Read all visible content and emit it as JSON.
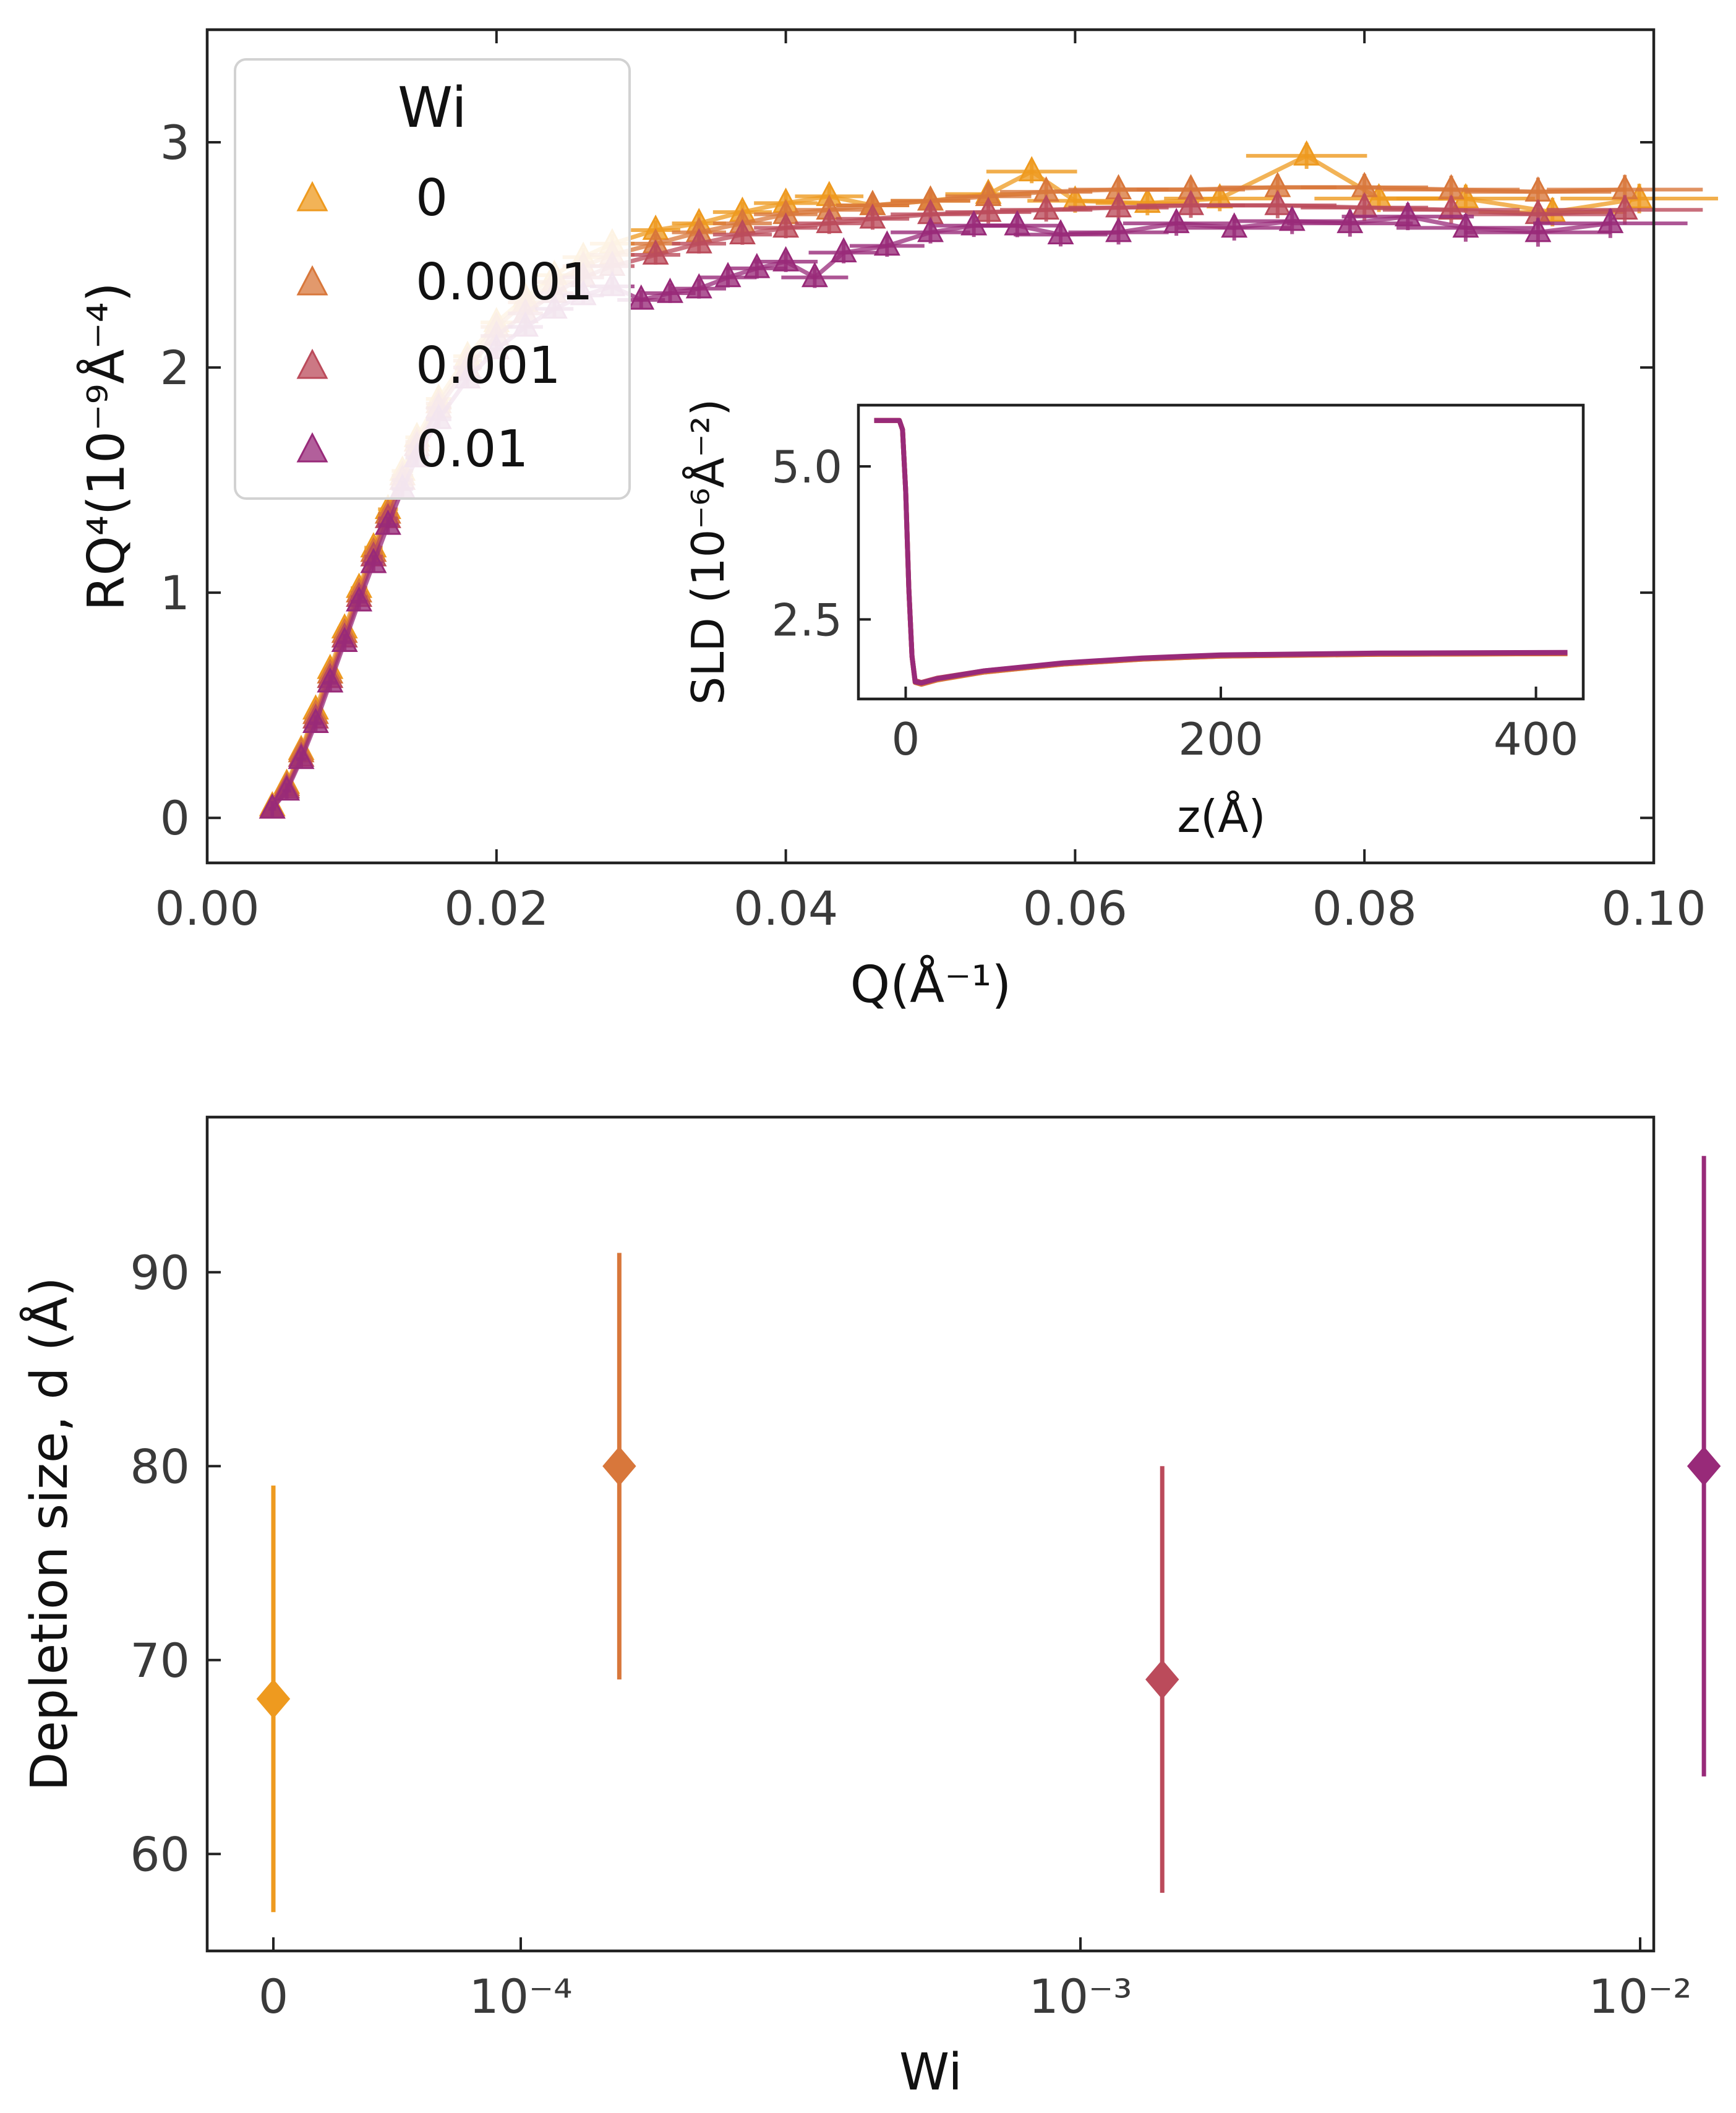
{
  "colors": {
    "wi_0": "#ee9a1f",
    "wi_0.0001": "#d8773b",
    "wi_0.001": "#bb4b5b",
    "wi_0.01": "#982a79",
    "axis": "#222222",
    "tick_text": "#3a3a3a"
  },
  "chart_data": [
    {
      "id": "reflectivity",
      "type": "scatter",
      "title": "",
      "xlabel": "Q(Å⁻¹)",
      "ylabel": "RQ⁴(10⁻⁹Å⁻⁴)",
      "xlim": [
        0.0,
        0.1
      ],
      "ylim": [
        -0.2,
        3.5
      ],
      "xticks": [
        0.0,
        0.02,
        0.04,
        0.06,
        0.08,
        0.1
      ],
      "xtick_labels": [
        "0.00",
        "0.02",
        "0.04",
        "0.06",
        "0.08",
        "0.10"
      ],
      "yticks": [
        0,
        1,
        2,
        3
      ],
      "ytick_labels": [
        "0",
        "1",
        "2",
        "3"
      ],
      "legend": {
        "title": "Wi",
        "position": "top-left",
        "entries": [
          "0",
          "0.0001",
          "0.001",
          "0.01"
        ],
        "marker": "triangle"
      },
      "series": [
        {
          "name": "0",
          "color": "#ee9a1f",
          "points": [
            [
              0.0045,
              0.05
            ],
            [
              0.0055,
              0.15
            ],
            [
              0.0065,
              0.3
            ],
            [
              0.0075,
              0.48
            ],
            [
              0.0085,
              0.66
            ],
            [
              0.0095,
              0.84
            ],
            [
              0.0105,
              1.02
            ],
            [
              0.0115,
              1.2
            ],
            [
              0.0125,
              1.37
            ],
            [
              0.0135,
              1.54
            ],
            [
              0.0145,
              1.69
            ],
            [
              0.016,
              1.86
            ],
            [
              0.018,
              2.05
            ],
            [
              0.02,
              2.2
            ],
            [
              0.022,
              2.31
            ],
            [
              0.024,
              2.41
            ],
            [
              0.026,
              2.49
            ],
            [
              0.028,
              2.55
            ],
            [
              0.031,
              2.61
            ],
            [
              0.034,
              2.64
            ],
            [
              0.037,
              2.69
            ],
            [
              0.04,
              2.73
            ],
            [
              0.043,
              2.76
            ],
            [
              0.046,
              2.72
            ],
            [
              0.05,
              2.74
            ],
            [
              0.054,
              2.77
            ],
            [
              0.057,
              2.87
            ],
            [
              0.06,
              2.74
            ],
            [
              0.065,
              2.73
            ],
            [
              0.07,
              2.75
            ],
            [
              0.076,
              2.94
            ],
            [
              0.081,
              2.75
            ],
            [
              0.087,
              2.75
            ],
            [
              0.093,
              2.69
            ],
            [
              0.099,
              2.75
            ]
          ]
        },
        {
          "name": "0.0001",
          "color": "#d8773b",
          "points": [
            [
              0.0045,
              0.04
            ],
            [
              0.0055,
              0.14
            ],
            [
              0.0065,
              0.29
            ],
            [
              0.0075,
              0.46
            ],
            [
              0.0085,
              0.64
            ],
            [
              0.0095,
              0.82
            ],
            [
              0.0105,
              1.0
            ],
            [
              0.0115,
              1.18
            ],
            [
              0.0125,
              1.35
            ],
            [
              0.0135,
              1.52
            ],
            [
              0.0145,
              1.67
            ],
            [
              0.016,
              1.84
            ],
            [
              0.018,
              2.03
            ],
            [
              0.02,
              2.18
            ],
            [
              0.022,
              2.29
            ],
            [
              0.024,
              2.38
            ],
            [
              0.026,
              2.45
            ],
            [
              0.028,
              2.5
            ],
            [
              0.031,
              2.55
            ],
            [
              0.034,
              2.6
            ],
            [
              0.037,
              2.64
            ],
            [
              0.04,
              2.68
            ],
            [
              0.043,
              2.7
            ],
            [
              0.046,
              2.72
            ],
            [
              0.05,
              2.74
            ],
            [
              0.054,
              2.76
            ],
            [
              0.058,
              2.78
            ],
            [
              0.063,
              2.79
            ],
            [
              0.068,
              2.79
            ],
            [
              0.074,
              2.8
            ],
            [
              0.08,
              2.8
            ],
            [
              0.086,
              2.79
            ],
            [
              0.092,
              2.78
            ],
            [
              0.098,
              2.79
            ]
          ]
        },
        {
          "name": "0.001",
          "color": "#bb4b5b",
          "points": [
            [
              0.0045,
              0.04
            ],
            [
              0.0055,
              0.13
            ],
            [
              0.0065,
              0.27
            ],
            [
              0.0075,
              0.44
            ],
            [
              0.0085,
              0.62
            ],
            [
              0.0095,
              0.8
            ],
            [
              0.0105,
              0.98
            ],
            [
              0.0115,
              1.16
            ],
            [
              0.0125,
              1.33
            ],
            [
              0.0135,
              1.5
            ],
            [
              0.0145,
              1.65
            ],
            [
              0.016,
              1.82
            ],
            [
              0.018,
              2.0
            ],
            [
              0.02,
              2.14
            ],
            [
              0.022,
              2.24
            ],
            [
              0.024,
              2.33
            ],
            [
              0.026,
              2.4
            ],
            [
              0.028,
              2.45
            ],
            [
              0.031,
              2.5
            ],
            [
              0.034,
              2.55
            ],
            [
              0.037,
              2.59
            ],
            [
              0.04,
              2.62
            ],
            [
              0.043,
              2.64
            ],
            [
              0.046,
              2.66
            ],
            [
              0.05,
              2.68
            ],
            [
              0.054,
              2.69
            ],
            [
              0.058,
              2.7
            ],
            [
              0.063,
              2.71
            ],
            [
              0.068,
              2.72
            ],
            [
              0.074,
              2.72
            ],
            [
              0.08,
              2.71
            ],
            [
              0.086,
              2.7
            ],
            [
              0.092,
              2.68
            ],
            [
              0.098,
              2.7
            ]
          ]
        },
        {
          "name": "0.01",
          "color": "#982a79",
          "points": [
            [
              0.0045,
              0.04
            ],
            [
              0.0055,
              0.12
            ],
            [
              0.0065,
              0.26
            ],
            [
              0.0075,
              0.42
            ],
            [
              0.0085,
              0.6
            ],
            [
              0.0095,
              0.78
            ],
            [
              0.0105,
              0.96
            ],
            [
              0.0115,
              1.13
            ],
            [
              0.0125,
              1.3
            ],
            [
              0.0135,
              1.46
            ],
            [
              0.0145,
              1.6
            ],
            [
              0.016,
              1.77
            ],
            [
              0.018,
              1.95
            ],
            [
              0.02,
              2.08
            ],
            [
              0.022,
              2.18
            ],
            [
              0.024,
              2.26
            ],
            [
              0.026,
              2.32
            ],
            [
              0.028,
              2.36
            ],
            [
              0.03,
              2.3
            ],
            [
              0.032,
              2.33
            ],
            [
              0.034,
              2.35
            ],
            [
              0.036,
              2.4
            ],
            [
              0.038,
              2.44
            ],
            [
              0.04,
              2.47
            ],
            [
              0.042,
              2.4
            ],
            [
              0.044,
              2.51
            ],
            [
              0.047,
              2.54
            ],
            [
              0.05,
              2.6
            ],
            [
              0.053,
              2.63
            ],
            [
              0.056,
              2.63
            ],
            [
              0.059,
              2.59
            ],
            [
              0.063,
              2.6
            ],
            [
              0.067,
              2.64
            ],
            [
              0.071,
              2.62
            ],
            [
              0.075,
              2.65
            ],
            [
              0.079,
              2.64
            ],
            [
              0.083,
              2.67
            ],
            [
              0.087,
              2.62
            ],
            [
              0.092,
              2.6
            ],
            [
              0.097,
              2.64
            ]
          ]
        }
      ]
    },
    {
      "id": "sld_inset",
      "type": "line",
      "title": "",
      "xlabel": "z(Å)",
      "ylabel": "SLD (10⁻⁶Å⁻²)",
      "xlim": [
        -30,
        430
      ],
      "ylim": [
        1.2,
        6.0
      ],
      "xticks": [
        0,
        200,
        400
      ],
      "xtick_labels": [
        "0",
        "200",
        "400"
      ],
      "yticks": [
        2.5,
        5.0
      ],
      "ytick_labels": [
        "2.5",
        "5.0"
      ],
      "series": [
        {
          "name": "0",
          "color": "#ee9a1f",
          "points": [
            [
              -20,
              5.75
            ],
            [
              -4,
              5.75
            ],
            [
              -2,
              5.6
            ],
            [
              0,
              4.6
            ],
            [
              2,
              3.0
            ],
            [
              4,
              1.9
            ],
            [
              6,
              1.48
            ],
            [
              10,
              1.45
            ],
            [
              20,
              1.52
            ],
            [
              50,
              1.64
            ],
            [
              100,
              1.77
            ],
            [
              150,
              1.85
            ],
            [
              200,
              1.9
            ],
            [
              300,
              1.93
            ],
            [
              420,
              1.94
            ]
          ]
        },
        {
          "name": "0.0001",
          "color": "#d8773b",
          "points": [
            [
              -20,
              5.75
            ],
            [
              -4,
              5.75
            ],
            [
              -2,
              5.6
            ],
            [
              0,
              4.6
            ],
            [
              2,
              3.0
            ],
            [
              4,
              1.9
            ],
            [
              6,
              1.47
            ],
            [
              10,
              1.44
            ],
            [
              20,
              1.51
            ],
            [
              50,
              1.64
            ],
            [
              100,
              1.77
            ],
            [
              150,
              1.85
            ],
            [
              200,
              1.9
            ],
            [
              300,
              1.93
            ],
            [
              420,
              1.94
            ]
          ]
        },
        {
          "name": "0.001",
          "color": "#bb4b5b",
          "points": [
            [
              -20,
              5.75
            ],
            [
              -4,
              5.75
            ],
            [
              -2,
              5.6
            ],
            [
              0,
              4.6
            ],
            [
              2,
              3.0
            ],
            [
              4,
              1.9
            ],
            [
              6,
              1.5
            ],
            [
              10,
              1.47
            ],
            [
              20,
              1.54
            ],
            [
              50,
              1.66
            ],
            [
              100,
              1.78
            ],
            [
              150,
              1.86
            ],
            [
              200,
              1.91
            ],
            [
              300,
              1.94
            ],
            [
              420,
              1.95
            ]
          ]
        },
        {
          "name": "0.01",
          "color": "#982a79",
          "points": [
            [
              -20,
              5.75
            ],
            [
              -4,
              5.75
            ],
            [
              -2,
              5.6
            ],
            [
              0,
              4.6
            ],
            [
              2,
              3.0
            ],
            [
              4,
              1.9
            ],
            [
              6,
              1.48
            ],
            [
              10,
              1.46
            ],
            [
              20,
              1.53
            ],
            [
              50,
              1.66
            ],
            [
              100,
              1.79
            ],
            [
              150,
              1.87
            ],
            [
              200,
              1.92
            ],
            [
              300,
              1.95
            ],
            [
              420,
              1.96
            ]
          ]
        }
      ]
    },
    {
      "id": "depletion",
      "type": "scatter",
      "title": "",
      "xlabel": "Wi",
      "ylabel": "Depletion size, d (Å)",
      "xscale": "symlog",
      "ylim": [
        55,
        98
      ],
      "xtick_labels": [
        "0",
        "10⁻⁴",
        "10⁻³",
        "10⁻²"
      ],
      "xtick_values": [
        0,
        0.0001,
        0.001,
        0.01
      ],
      "yticks": [
        60,
        70,
        80,
        90
      ],
      "ytick_labels": [
        "60",
        "70",
        "80",
        "90"
      ],
      "marker": "diamond",
      "points": [
        {
          "wi": 0,
          "value": 68,
          "err_low": 57,
          "err_high": 79,
          "color": "#ee9a1f"
        },
        {
          "wi": 0.00015,
          "value": 80,
          "err_low": 69,
          "err_high": 91,
          "color": "#d8773b"
        },
        {
          "wi": 0.0014,
          "value": 69,
          "err_low": 58,
          "err_high": 80,
          "color": "#bb4b5b"
        },
        {
          "wi": 0.013,
          "value": 80,
          "err_low": 64,
          "err_high": 96,
          "color": "#982a79"
        }
      ]
    }
  ]
}
